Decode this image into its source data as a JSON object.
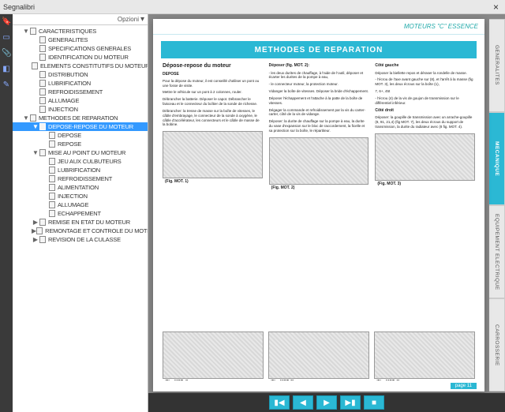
{
  "window": {
    "title": "Segnalibri"
  },
  "options_label": "Opzioni",
  "tree": [
    {
      "label": "CARACTERISTIQUES",
      "depth": 1,
      "twisty": "▼",
      "sel": false
    },
    {
      "label": "GENERALITES",
      "depth": 2,
      "twisty": "",
      "sel": false
    },
    {
      "label": "SPECIFICATIONS GENERALES",
      "depth": 2,
      "twisty": "",
      "sel": false
    },
    {
      "label": "IDENTIFICATION DU MOTEUR",
      "depth": 2,
      "twisty": "",
      "sel": false
    },
    {
      "label": "ELEMENTS CONSTITUTIFS DU MOTEUR",
      "depth": 2,
      "twisty": "",
      "sel": false
    },
    {
      "label": "DISTRIBUTION",
      "depth": 2,
      "twisty": "",
      "sel": false
    },
    {
      "label": "LUBRIFICATION",
      "depth": 2,
      "twisty": "",
      "sel": false
    },
    {
      "label": "REFROIDISSEMENT",
      "depth": 2,
      "twisty": "",
      "sel": false
    },
    {
      "label": "ALLUMAGE",
      "depth": 2,
      "twisty": "",
      "sel": false
    },
    {
      "label": "INJECTION",
      "depth": 2,
      "twisty": "",
      "sel": false
    },
    {
      "label": "METHODES DE REPARATION",
      "depth": 1,
      "twisty": "▼",
      "sel": false
    },
    {
      "label": "DEPOSE-REPOSE DU MOTEUR",
      "depth": 2,
      "twisty": "▼",
      "sel": true
    },
    {
      "label": "DEPOSE",
      "depth": 3,
      "twisty": "",
      "sel": false
    },
    {
      "label": "REPOSE",
      "depth": 3,
      "twisty": "",
      "sel": false
    },
    {
      "label": "MISE AU POINT DU MOTEUR",
      "depth": 2,
      "twisty": "▼",
      "sel": false
    },
    {
      "label": "JEU AUX CULBUTEURS",
      "depth": 3,
      "twisty": "",
      "sel": false
    },
    {
      "label": "LUBRIFICATION",
      "depth": 3,
      "twisty": "",
      "sel": false
    },
    {
      "label": "REFROIDISSEMENT",
      "depth": 3,
      "twisty": "",
      "sel": false
    },
    {
      "label": "ALIMENTATION",
      "depth": 3,
      "twisty": "",
      "sel": false
    },
    {
      "label": "INJECTION",
      "depth": 3,
      "twisty": "",
      "sel": false
    },
    {
      "label": "ALLUMAGE",
      "depth": 3,
      "twisty": "",
      "sel": false
    },
    {
      "label": "ECHAPPEMENT",
      "depth": 3,
      "twisty": "",
      "sel": false
    },
    {
      "label": "REMISE EN ETAT DU MOTEUR",
      "depth": 2,
      "twisty": "▶",
      "sel": false
    },
    {
      "label": "REMONTAGE ET CONTROLE DU MOTEUR",
      "depth": 2,
      "twisty": "▶",
      "sel": false
    },
    {
      "label": "REVISION DE LA CULASSE",
      "depth": 2,
      "twisty": "▶",
      "sel": false
    }
  ],
  "page": {
    "header": "MOTEURS \"C\" ESSENCE",
    "method_title": "METHODES DE REPARATION",
    "section_title": "Dépose-repose du moteur",
    "sub1": "DEPOSE",
    "para1": "Pour la dépose du moteur, il est conseillé d'utiliser un pont ou une fosse de visite.",
    "para2": "Mettre le véhicule sur un pont à 2 colonnes, rouler.",
    "col2_h": "Déposer (fig. MOT. 2):",
    "col3_h": "Côté gauche",
    "col3_h2": "Côté droit",
    "figcap1": "(Fig. MOT. 1)",
    "figcap2": "(Fig. MOT. 2)",
    "figcap3": "(Fig. MOT. 3)",
    "figcap4": "(Fig. MOT. 4)",
    "figcap5": "(Fig. MOT. 5)",
    "figcap6": "(Fig. MOT. 6)",
    "page_num": "page 11"
  },
  "tabs": [
    {
      "label": "GENERALITES",
      "active": false
    },
    {
      "label": "MECANIQUE",
      "active": true
    },
    {
      "label": "EQUIPEMENT ELECTRIQUE",
      "active": false
    },
    {
      "label": "CARROSSERIE",
      "active": false
    }
  ],
  "colors": {
    "accent": "#2bb8d4",
    "dark": "#333",
    "sel": "#3399ff"
  }
}
